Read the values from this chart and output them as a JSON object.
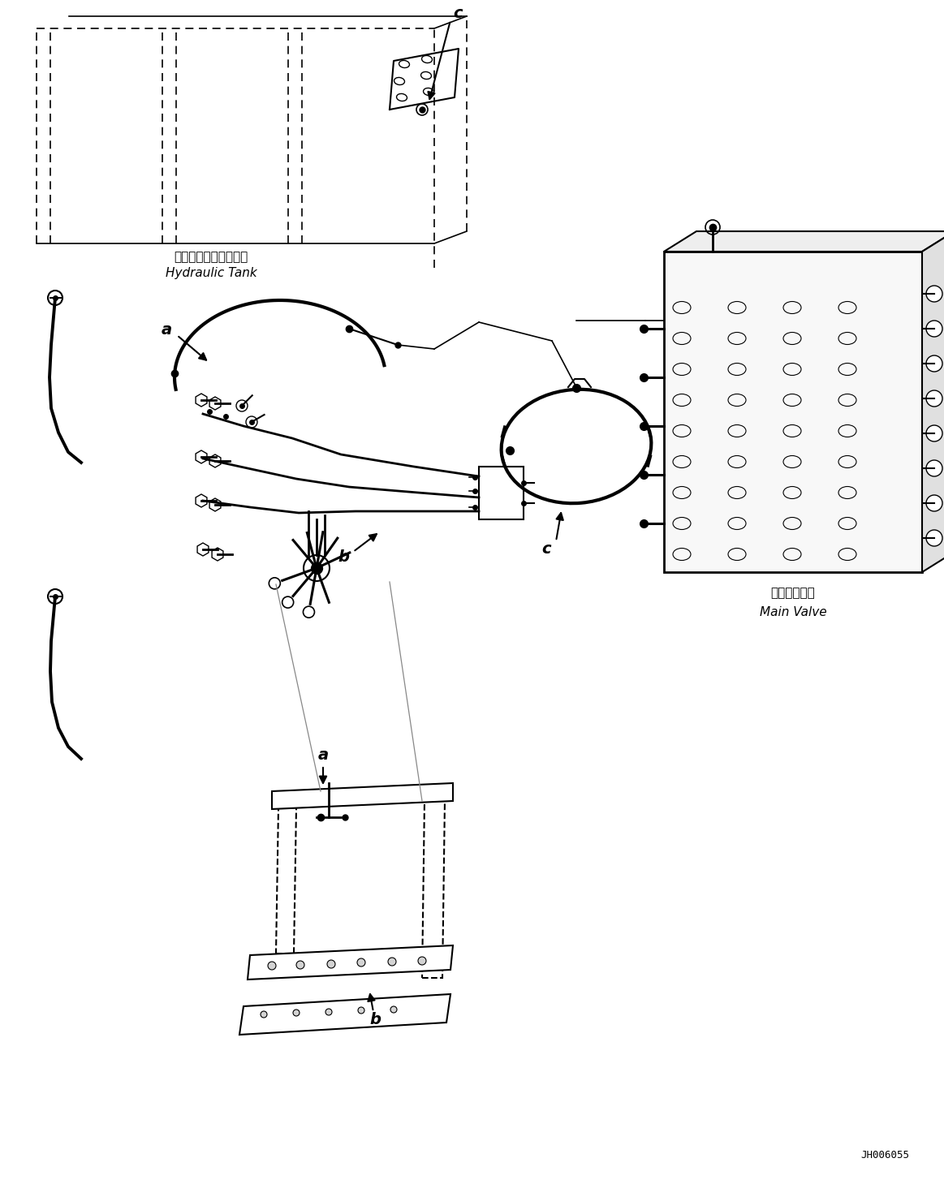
{
  "bg_color": "#ffffff",
  "line_color": "#000000",
  "fig_width": 11.63,
  "fig_height": 14.75,
  "title_code": "JH006055",
  "labels": {
    "hydraulic_tank_jp": "ハイドロリックタンク",
    "hydraulic_tank_en": "Hydraulic Tank",
    "main_valve_jp": "メインバルブ",
    "main_valve_en": "Main Valve",
    "label_a1": "a",
    "label_b1": "b",
    "label_c1": "c",
    "label_a2": "a",
    "label_b2": "b",
    "label_c2": "c"
  },
  "font_size_label": 12,
  "font_size_component": 10,
  "font_size_code": 9
}
